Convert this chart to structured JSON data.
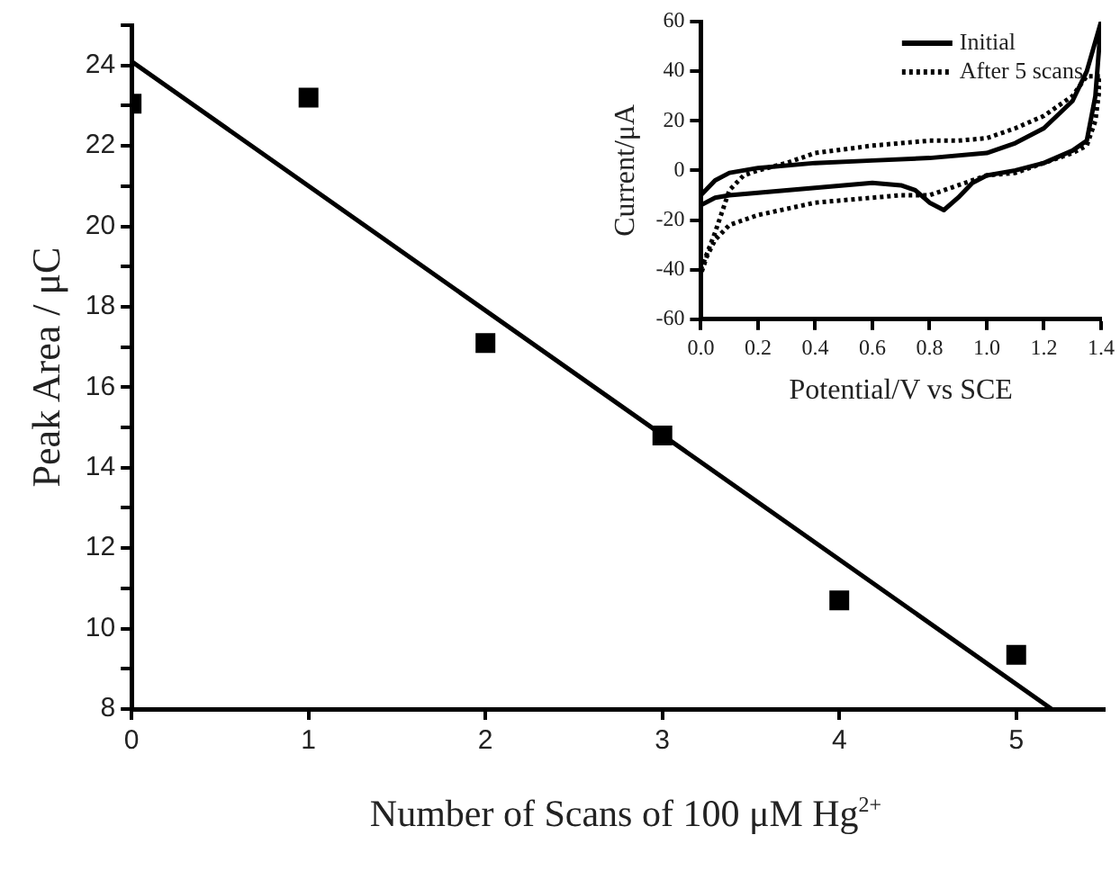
{
  "chart_data": [
    {
      "type": "scatter",
      "xlabel": "Number of Scans of 100 μM Hg$^{2+}$",
      "ylabel": "Peak Area / μC",
      "xlim": [
        0,
        5.5
      ],
      "xticks": [
        0,
        1,
        2,
        3,
        4,
        5
      ],
      "ylim": [
        8,
        25
      ],
      "yticks": [
        8,
        {
          "value": 9,
          "label": null
        },
        10,
        {
          "value": 11,
          "label": null
        },
        12,
        {
          "value": 13,
          "label": null
        },
        14,
        {
          "value": 15,
          "label": null
        },
        16,
        {
          "value": 17,
          "label": null
        },
        18,
        {
          "value": 19,
          "label": null
        },
        20,
        {
          "value": 21,
          "label": null
        },
        22,
        {
          "value": 23,
          "label": null
        },
        24,
        {
          "value": 25,
          "label": null
        }
      ],
      "grid": false,
      "marker": "square",
      "series": [
        {
          "color": "#000000",
          "x": [
            0,
            1,
            2,
            3,
            4,
            5
          ],
          "values": [
            23.05,
            23.2,
            17.1,
            14.8,
            10.7,
            9.35
          ]
        },
        {
          "type": "line",
          "color": "#000000",
          "marker": "none",
          "x": [
            0,
            5.2
          ],
          "values": [
            24.1,
            8
          ]
        }
      ]
    },
    {
      "type": "line",
      "xlabel": "Potential/V vs SCE",
      "ylabel": "Current/μA",
      "xlim": [
        0,
        1.4
      ],
      "xticks": [
        {
          "value": 0,
          "label": "0.0"
        },
        0.2,
        0.4,
        0.6,
        0.8,
        {
          "value": 1,
          "label": "1.0"
        },
        1.2,
        1.4
      ],
      "ylim": [
        -60,
        60
      ],
      "yticks": [
        -60,
        -40,
        -20,
        0,
        20,
        40,
        60
      ],
      "grid": false,
      "legend": "top right",
      "marker": "none",
      "series": [
        {
          "name": "Initial",
          "color": "#000000",
          "line_style": "solid",
          "x": [
            0,
            0.05,
            0.1,
            0.2,
            0.4,
            0.6,
            0.8,
            1.0,
            1.1,
            1.2,
            1.3,
            1.35,
            1.4,
            1.38,
            1.35,
            1.3,
            1.2,
            1.1,
            1.0,
            0.95,
            0.9,
            0.85,
            0.8,
            0.75,
            0.7,
            0.6,
            0.4,
            0.2,
            0.1,
            0.05,
            0
          ],
          "values": [
            -10,
            -4,
            -1,
            1,
            3,
            4,
            5,
            7,
            11,
            17,
            28,
            40,
            60,
            30,
            12,
            8,
            3,
            0,
            -2,
            -5,
            -11,
            -16,
            -13,
            -8,
            -6,
            -5,
            -7,
            -9,
            -10,
            -11,
            -14
          ]
        },
        {
          "name": "After 5 scans",
          "color": "#000000",
          "line_style": "dotted",
          "x": [
            0,
            0.05,
            0.1,
            0.15,
            0.2,
            0.3,
            0.4,
            0.6,
            0.8,
            0.9,
            1.0,
            1.1,
            1.2,
            1.3,
            1.35,
            1.4,
            1.38,
            1.35,
            1.3,
            1.2,
            1.1,
            1.0,
            0.9,
            0.8,
            0.7,
            0.6,
            0.4,
            0.2,
            0.1,
            0.05,
            0.02,
            0
          ],
          "values": [
            -40,
            -25,
            -8,
            -2,
            0,
            3,
            7,
            10,
            12,
            12,
            13,
            17,
            22,
            30,
            38,
            38,
            20,
            10,
            7,
            3,
            -1,
            -2,
            -6,
            -10,
            -10,
            -11,
            -13,
            -18,
            -22,
            -28,
            -35,
            -42
          ]
        }
      ]
    }
  ]
}
